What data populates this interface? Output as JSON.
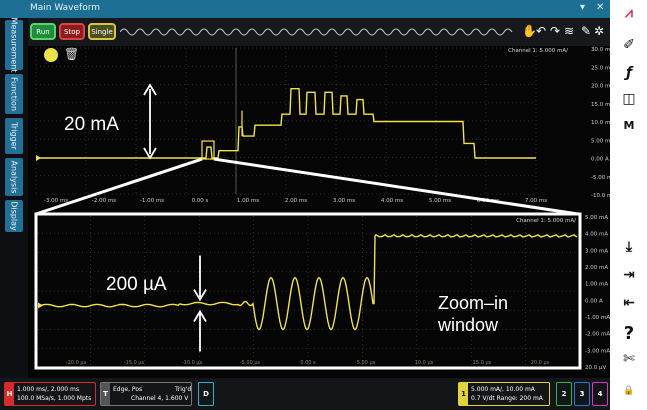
{
  "window": {
    "title": "Main Waveform"
  },
  "left_tabs": [
    "Measurement",
    "Function",
    "Trigger",
    "Analysis",
    "Display"
  ],
  "toolbar": {
    "run": "Run",
    "stop": "Stop",
    "single": "Single"
  },
  "scope": {
    "channel_label_top": "Channel 1: 5.000 mA/",
    "channel_label_zoom": "Channel 1: 5.000 mA/",
    "main_y_ticks": [
      "30.0 mA",
      "25.0 mA",
      "20.0 mA",
      "15.0 mA",
      "10.0 mA",
      "5.00 mA",
      "0.00 A",
      "-5.00 mA",
      "-10.0 mA"
    ],
    "main_x_ticks": [
      "-3.00 ms",
      "-2.00 ms",
      "-1.00 ms",
      "0.00 s",
      "1.00 ms",
      "2.00 ms",
      "3.00 ms",
      "4.00 ms",
      "5.00 ms",
      "6.00 ms",
      "7.00 ms"
    ],
    "zoom_y_ticks": [
      "5.00 mA",
      "4.00 mA",
      "3.00 mA",
      "2.00 mA",
      "1.00 mA",
      "0.00 A",
      "-1.00 mA",
      "-2.00 mA",
      "-3.00 mA",
      "20.0 µV"
    ],
    "zoom_x_ticks": [
      "-20.0 µs",
      "-15.0 µs",
      "-10.0 µs",
      "-5.00 µs",
      "0.00 s",
      "5.00 µs",
      "10.0 µs",
      "15.0 µs",
      "20.0 µs"
    ]
  },
  "annotations": {
    "main_delta": "20 mA",
    "zoom_delta": "200 µA",
    "zoom_label_line1": "Zoom–in",
    "zoom_label_line2": "window"
  },
  "status": {
    "timebase_line1": "1.000 ms/, 2.000 ms",
    "timebase_line2": "100.0 MSa/s, 1.000 Mpts",
    "trigger_tag": "T",
    "trigger_line1": "Edge, Pos",
    "trigger_line1b": "Trig'd",
    "trigger_line2": "Channel 4, 1.600 V",
    "d_tag": "D",
    "ch1_tag": "1",
    "ch1_line1": "5.000 mA/, 10.00 mA",
    "ch1_line2": "0.7 V/dt Range: 200 mA",
    "ch2_tag": "2",
    "ch3_tag": "3",
    "ch4_tag": "4"
  },
  "colors": {
    "trace": "#f2e24a",
    "grid": "#3a3a3a",
    "ch1": "#e0d43a",
    "ch2": "#2fb54a",
    "ch3": "#2f74d8",
    "ch4": "#d43ac0",
    "timebase": "#d62b2b"
  }
}
